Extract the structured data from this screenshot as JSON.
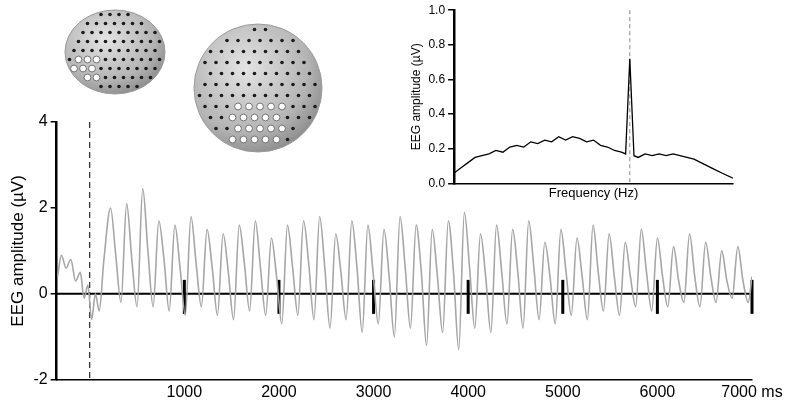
{
  "chart_data": [
    {
      "type": "line",
      "x": [
        -340,
        -300,
        -250,
        -200,
        -150,
        -100,
        -60,
        -20,
        20,
        60,
        100,
        150,
        220,
        275,
        330,
        390,
        445,
        500,
        560,
        615,
        670,
        730,
        785,
        840,
        900,
        955,
        1010,
        1070,
        1125,
        1180,
        1240,
        1295,
        1350,
        1410,
        1465,
        1520,
        1580,
        1635,
        1690,
        1750,
        1805,
        1860,
        1920,
        1975,
        2030,
        2090,
        2145,
        2200,
        2260,
        2315,
        2370,
        2430,
        2485,
        2540,
        2600,
        2655,
        2710,
        2770,
        2825,
        2880,
        2940,
        2995,
        3050,
        3110,
        3165,
        3220,
        3280,
        3335,
        3390,
        3450,
        3505,
        3560,
        3620,
        3675,
        3730,
        3790,
        3845,
        3900,
        3960,
        4015,
        4070,
        4130,
        4185,
        4240,
        4300,
        4355,
        4410,
        4470,
        4525,
        4580,
        4640,
        4695,
        4750,
        4810,
        4865,
        4920,
        4980,
        5035,
        5090,
        5150,
        5205,
        5260,
        5320,
        5375,
        5430,
        5490,
        5545,
        5600,
        5660,
        5715,
        5770,
        5830,
        5885,
        5940,
        6000,
        6055,
        6110,
        6170,
        6225,
        6280,
        6340,
        6395,
        6450,
        6510,
        6565,
        6620,
        6680,
        6735,
        6790,
        6850,
        6905,
        6960,
        7000
      ],
      "values": [
        0.4,
        0.9,
        0.6,
        0.8,
        0.3,
        0.5,
        -0.1,
        0.2,
        -0.6,
        0.0,
        -0.4,
        0.8,
        2.0,
        0.9,
        -0.2,
        2.1,
        0.8,
        -0.3,
        2.45,
        1.0,
        -0.3,
        1.7,
        0.8,
        -0.4,
        1.6,
        0.6,
        -0.5,
        1.8,
        0.7,
        -0.3,
        1.5,
        0.6,
        -0.5,
        1.4,
        0.5,
        -0.6,
        1.6,
        0.7,
        -0.4,
        1.7,
        0.6,
        -0.5,
        1.3,
        0.4,
        -0.7,
        1.6,
        0.6,
        -0.5,
        1.7,
        0.7,
        -0.6,
        1.8,
        0.6,
        -0.8,
        1.4,
        0.5,
        -0.6,
        1.7,
        0.6,
        -0.9,
        1.6,
        0.5,
        -0.7,
        1.5,
        0.4,
        -1.0,
        1.8,
        0.6,
        -0.8,
        1.6,
        0.5,
        -1.2,
        1.5,
        0.4,
        -0.9,
        1.7,
        0.5,
        -1.3,
        1.9,
        0.6,
        -0.8,
        1.4,
        0.4,
        -0.9,
        1.6,
        0.5,
        -0.7,
        1.5,
        0.5,
        -0.8,
        1.7,
        0.6,
        -0.6,
        1.2,
        0.4,
        -0.7,
        1.5,
        0.5,
        -0.5,
        1.3,
        0.4,
        -0.6,
        1.6,
        0.5,
        -0.4,
        1.4,
        0.4,
        -0.5,
        1.2,
        0.4,
        -0.3,
        1.5,
        0.5,
        -0.4,
        1.3,
        0.4,
        -0.3,
        1.1,
        0.3,
        -0.2,
        1.4,
        0.4,
        -0.3,
        1.2,
        0.4,
        -0.2,
        1.0,
        0.3,
        -0.1,
        1.1,
        0.3,
        -0.2,
        0.4
      ],
      "color": "#a6a6a6",
      "xlim": [
        -350,
        7000
      ],
      "xticks": [
        1000,
        2000,
        3000,
        4000,
        5000,
        6000,
        {
          "value": 7000,
          "label": "7000 ms"
        }
      ],
      "ylim": [
        -2,
        4
      ],
      "yticks": [
        -2,
        0,
        2,
        4
      ],
      "y_label": "EEG amplitude (µV)",
      "baseline": 0,
      "events": [
        1000,
        2000,
        3000,
        4000,
        5000,
        6000,
        7000
      ],
      "onset": 0,
      "grid": false
    },
    {
      "type": "line",
      "x": [
        0,
        0.25,
        0.5,
        0.75,
        1,
        1.25,
        1.5,
        1.75,
        2,
        2.25,
        2.5,
        2.75,
        3,
        3.25,
        3.5,
        3.75,
        4,
        4.25,
        4.5,
        4.75,
        5,
        5.25,
        5.5,
        5.75,
        6,
        6.15,
        6.3,
        6.45,
        6.6,
        6.85,
        7.1,
        7.35,
        7.6,
        7.85,
        8.1,
        8.35,
        8.6,
        8.85,
        9.1,
        9.35,
        9.6,
        10
      ],
      "values": [
        0.06,
        0.09,
        0.12,
        0.15,
        0.16,
        0.17,
        0.19,
        0.18,
        0.21,
        0.22,
        0.21,
        0.24,
        0.23,
        0.25,
        0.24,
        0.27,
        0.25,
        0.27,
        0.26,
        0.24,
        0.25,
        0.22,
        0.21,
        0.19,
        0.18,
        0.17,
        0.72,
        0.16,
        0.15,
        0.17,
        0.16,
        0.17,
        0.16,
        0.17,
        0.16,
        0.15,
        0.14,
        0.12,
        0.1,
        0.08,
        0.06,
        0.03
      ],
      "color": "#000000",
      "xlim": [
        0,
        10
      ],
      "ylim": [
        0,
        1
      ],
      "yticks": [
        {
          "value": 0,
          "label": "0.0"
        },
        0.2,
        0.4,
        0.6,
        0.8,
        {
          "value": 1,
          "label": "1.0"
        }
      ],
      "x_label": "Frequency (Hz)",
      "y_label": "EEG amplitude (µV)",
      "peak_frequency": 6.3,
      "tick_labels": "y",
      "grid": false
    }
  ]
}
